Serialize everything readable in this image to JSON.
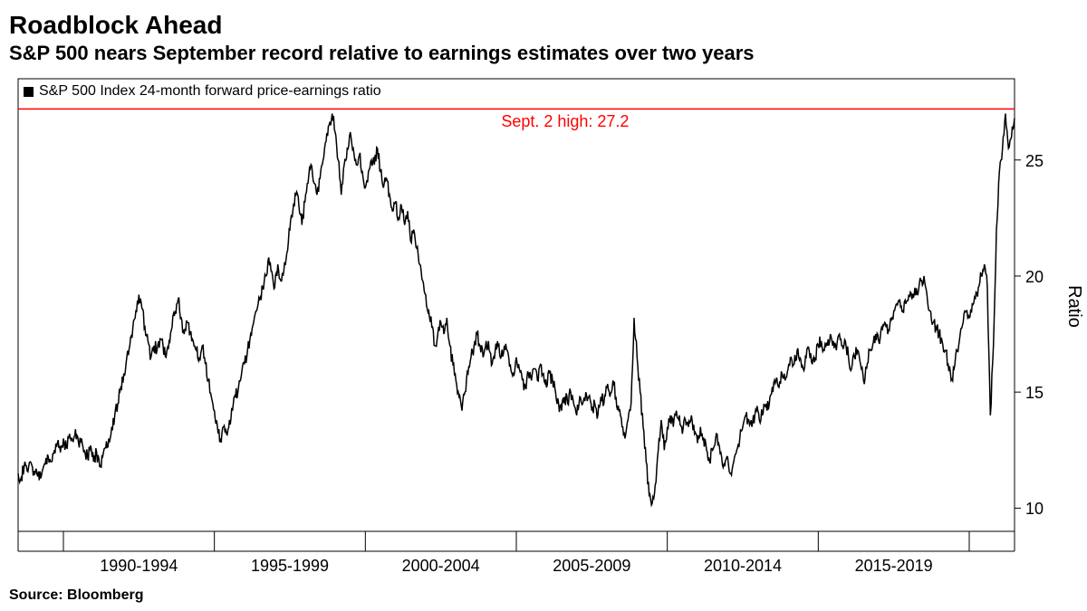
{
  "title": "Roadblock Ahead",
  "subtitle": "S&P 500 nears September record relative to earnings estimates over two years",
  "source": "Source: Bloomberg",
  "legend_label": "S&P 500 Index 24-month forward price-earnings ratio",
  "annotation_label": "Sept. 2 high: 27.2",
  "annotation_value": 27.2,
  "annotation_color": "#ff0000",
  "y_axis_label": "Ratio",
  "chart": {
    "type": "line",
    "background_color": "#ffffff",
    "border_color": "#000000",
    "line_color": "#000000",
    "line_width": 1.5,
    "reference_line_color": "#ff0000",
    "reference_line_width": 1.5,
    "title_fontsize": 28,
    "subtitle_fontsize": 22,
    "legend_fontsize": 16,
    "annotation_fontsize": 18,
    "tick_fontsize": 18,
    "axis_label_fontsize": 20,
    "source_fontsize": 16,
    "x_range": [
      1988,
      2021
    ],
    "y_range": [
      9,
      28.5
    ],
    "y_ticks": [
      10,
      15,
      20,
      25
    ],
    "x_tick_positions": [
      1992,
      1997,
      2002,
      2007,
      2012,
      2017
    ],
    "x_tick_labels": [
      "1990-1994",
      "1995-1999",
      "2000-2004",
      "2005-2009",
      "2010-2014",
      "2015-2019"
    ],
    "x_divider_positions": [
      1992,
      1997,
      2002,
      2007,
      2012,
      2017
    ],
    "series": {
      "values": [
        [
          1988.0,
          11.5
        ],
        [
          1988.1,
          11.3
        ],
        [
          1988.2,
          11.8
        ],
        [
          1988.3,
          11.6
        ],
        [
          1988.4,
          12.0
        ],
        [
          1988.5,
          11.4
        ],
        [
          1988.6,
          11.7
        ],
        [
          1988.7,
          11.2
        ],
        [
          1988.8,
          11.6
        ],
        [
          1988.9,
          11.9
        ],
        [
          1989.0,
          12.2
        ],
        [
          1989.1,
          12.0
        ],
        [
          1989.2,
          12.5
        ],
        [
          1989.3,
          12.8
        ],
        [
          1989.4,
          12.4
        ],
        [
          1989.5,
          13.0
        ],
        [
          1989.6,
          12.6
        ],
        [
          1989.7,
          13.2
        ],
        [
          1989.8,
          12.9
        ],
        [
          1989.9,
          13.4
        ],
        [
          1990.0,
          12.8
        ],
        [
          1990.1,
          13.0
        ],
        [
          1990.2,
          12.5
        ],
        [
          1990.3,
          12.2
        ],
        [
          1990.4,
          12.7
        ],
        [
          1990.5,
          12.0
        ],
        [
          1990.6,
          12.4
        ],
        [
          1990.7,
          11.8
        ],
        [
          1990.8,
          12.2
        ],
        [
          1990.9,
          12.6
        ],
        [
          1991.0,
          13.0
        ],
        [
          1991.1,
          13.5
        ],
        [
          1991.2,
          14.0
        ],
        [
          1991.3,
          14.5
        ],
        [
          1991.4,
          15.2
        ],
        [
          1991.5,
          15.8
        ],
        [
          1991.6,
          16.5
        ],
        [
          1991.7,
          17.0
        ],
        [
          1991.8,
          17.8
        ],
        [
          1991.9,
          18.5
        ],
        [
          1992.0,
          19.2
        ],
        [
          1992.1,
          18.6
        ],
        [
          1992.2,
          17.8
        ],
        [
          1992.3,
          17.2
        ],
        [
          1992.4,
          16.5
        ],
        [
          1992.5,
          17.0
        ],
        [
          1992.6,
          16.8
        ],
        [
          1992.7,
          17.3
        ],
        [
          1992.8,
          17.0
        ],
        [
          1992.9,
          16.5
        ],
        [
          1993.0,
          17.2
        ],
        [
          1993.1,
          17.8
        ],
        [
          1993.2,
          18.5
        ],
        [
          1993.3,
          19.0
        ],
        [
          1993.4,
          18.2
        ],
        [
          1993.5,
          17.5
        ],
        [
          1993.6,
          18.0
        ],
        [
          1993.7,
          17.6
        ],
        [
          1993.8,
          17.2
        ],
        [
          1993.9,
          16.8
        ],
        [
          1994.0,
          16.5
        ],
        [
          1994.1,
          17.0
        ],
        [
          1994.2,
          16.2
        ],
        [
          1994.3,
          15.5
        ],
        [
          1994.4,
          14.8
        ],
        [
          1994.5,
          14.2
        ],
        [
          1994.6,
          13.5
        ],
        [
          1994.7,
          13.0
        ],
        [
          1994.8,
          13.5
        ],
        [
          1994.9,
          13.2
        ],
        [
          1995.0,
          13.8
        ],
        [
          1995.1,
          14.2
        ],
        [
          1995.2,
          14.8
        ],
        [
          1995.3,
          15.2
        ],
        [
          1995.4,
          15.8
        ],
        [
          1995.5,
          16.2
        ],
        [
          1995.6,
          16.8
        ],
        [
          1995.7,
          17.5
        ],
        [
          1995.8,
          18.0
        ],
        [
          1995.9,
          18.5
        ],
        [
          1996.0,
          19.0
        ],
        [
          1996.1,
          19.5
        ],
        [
          1996.2,
          20.0
        ],
        [
          1996.3,
          20.8
        ],
        [
          1996.4,
          20.2
        ],
        [
          1996.5,
          19.5
        ],
        [
          1996.6,
          20.5
        ],
        [
          1996.7,
          19.8
        ],
        [
          1996.8,
          20.2
        ],
        [
          1996.9,
          21.0
        ],
        [
          1997.0,
          22.0
        ],
        [
          1997.1,
          22.8
        ],
        [
          1997.2,
          23.5
        ],
        [
          1997.3,
          23.0
        ],
        [
          1997.4,
          22.2
        ],
        [
          1997.5,
          23.2
        ],
        [
          1997.6,
          24.0
        ],
        [
          1997.7,
          24.8
        ],
        [
          1997.8,
          24.0
        ],
        [
          1997.9,
          23.5
        ],
        [
          1998.0,
          24.2
        ],
        [
          1998.1,
          25.0
        ],
        [
          1998.2,
          25.8
        ],
        [
          1998.3,
          26.5
        ],
        [
          1998.4,
          27.0
        ],
        [
          1998.5,
          26.2
        ],
        [
          1998.6,
          25.0
        ],
        [
          1998.7,
          23.5
        ],
        [
          1998.8,
          24.8
        ],
        [
          1998.9,
          25.5
        ],
        [
          1999.0,
          26.2
        ],
        [
          1999.1,
          25.5
        ],
        [
          1999.2,
          24.8
        ],
        [
          1999.3,
          25.2
        ],
        [
          1999.4,
          24.5
        ],
        [
          1999.5,
          23.8
        ],
        [
          1999.6,
          24.5
        ],
        [
          1999.7,
          25.0
        ],
        [
          1999.8,
          24.8
        ],
        [
          1999.9,
          25.5
        ],
        [
          2000.0,
          24.5
        ],
        [
          2000.1,
          23.8
        ],
        [
          2000.2,
          24.2
        ],
        [
          2000.3,
          23.5
        ],
        [
          2000.4,
          22.8
        ],
        [
          2000.5,
          23.2
        ],
        [
          2000.6,
          22.5
        ],
        [
          2000.7,
          23.0
        ],
        [
          2000.8,
          22.2
        ],
        [
          2000.9,
          22.8
        ],
        [
          2001.0,
          21.5
        ],
        [
          2001.1,
          22.0
        ],
        [
          2001.2,
          21.2
        ],
        [
          2001.3,
          20.5
        ],
        [
          2001.4,
          19.8
        ],
        [
          2001.5,
          19.2
        ],
        [
          2001.6,
          18.5
        ],
        [
          2001.7,
          17.8
        ],
        [
          2001.8,
          17.0
        ],
        [
          2001.9,
          17.5
        ],
        [
          2002.0,
          18.0
        ],
        [
          2002.1,
          17.5
        ],
        [
          2002.2,
          18.2
        ],
        [
          2002.3,
          17.0
        ],
        [
          2002.4,
          16.2
        ],
        [
          2002.5,
          15.5
        ],
        [
          2002.6,
          14.8
        ],
        [
          2002.7,
          14.2
        ],
        [
          2002.8,
          15.0
        ],
        [
          2002.9,
          15.8
        ],
        [
          2003.0,
          16.5
        ],
        [
          2003.1,
          17.0
        ],
        [
          2003.2,
          17.5
        ],
        [
          2003.3,
          17.0
        ],
        [
          2003.4,
          16.5
        ],
        [
          2003.5,
          17.2
        ],
        [
          2003.6,
          16.8
        ],
        [
          2003.7,
          16.2
        ],
        [
          2003.8,
          16.8
        ],
        [
          2003.9,
          17.0
        ],
        [
          2004.0,
          16.5
        ],
        [
          2004.1,
          17.0
        ],
        [
          2004.2,
          16.8
        ],
        [
          2004.3,
          16.2
        ],
        [
          2004.4,
          15.8
        ],
        [
          2004.5,
          16.5
        ],
        [
          2004.6,
          16.0
        ],
        [
          2004.7,
          15.5
        ],
        [
          2004.8,
          15.2
        ],
        [
          2004.9,
          15.8
        ],
        [
          2005.0,
          15.5
        ],
        [
          2005.1,
          16.0
        ],
        [
          2005.2,
          15.5
        ],
        [
          2005.3,
          16.2
        ],
        [
          2005.4,
          15.8
        ],
        [
          2005.5,
          15.2
        ],
        [
          2005.6,
          15.8
        ],
        [
          2005.7,
          15.5
        ],
        [
          2005.8,
          15.0
        ],
        [
          2005.9,
          14.5
        ],
        [
          2006.0,
          14.2
        ],
        [
          2006.1,
          14.8
        ],
        [
          2006.2,
          14.5
        ],
        [
          2006.3,
          15.0
        ],
        [
          2006.4,
          14.5
        ],
        [
          2006.5,
          14.0
        ],
        [
          2006.6,
          14.8
        ],
        [
          2006.7,
          14.5
        ],
        [
          2006.8,
          15.0
        ],
        [
          2006.9,
          14.8
        ],
        [
          2007.0,
          14.2
        ],
        [
          2007.1,
          14.5
        ],
        [
          2007.2,
          14.0
        ],
        [
          2007.3,
          14.8
        ],
        [
          2007.4,
          14.5
        ],
        [
          2007.5,
          15.2
        ],
        [
          2007.6,
          14.8
        ],
        [
          2007.7,
          15.5
        ],
        [
          2007.8,
          14.8
        ],
        [
          2007.9,
          14.2
        ],
        [
          2008.0,
          13.5
        ],
        [
          2008.1,
          13.0
        ],
        [
          2008.2,
          13.8
        ],
        [
          2008.3,
          14.5
        ],
        [
          2008.4,
          18.2
        ],
        [
          2008.5,
          16.5
        ],
        [
          2008.6,
          15.0
        ],
        [
          2008.7,
          13.5
        ],
        [
          2008.8,
          12.0
        ],
        [
          2008.9,
          10.5
        ],
        [
          2009.0,
          10.2
        ],
        [
          2009.1,
          11.0
        ],
        [
          2009.2,
          12.5
        ],
        [
          2009.3,
          13.8
        ],
        [
          2009.4,
          12.5
        ],
        [
          2009.5,
          13.5
        ],
        [
          2009.6,
          14.0
        ],
        [
          2009.7,
          13.5
        ],
        [
          2009.8,
          14.2
        ],
        [
          2009.9,
          14.0
        ],
        [
          2010.0,
          13.2
        ],
        [
          2010.1,
          13.8
        ],
        [
          2010.2,
          13.5
        ],
        [
          2010.3,
          14.0
        ],
        [
          2010.4,
          13.2
        ],
        [
          2010.5,
          12.8
        ],
        [
          2010.6,
          13.5
        ],
        [
          2010.7,
          13.0
        ],
        [
          2010.8,
          12.5
        ],
        [
          2010.9,
          12.0
        ],
        [
          2011.0,
          12.5
        ],
        [
          2011.1,
          13.0
        ],
        [
          2011.2,
          12.8
        ],
        [
          2011.3,
          12.2
        ],
        [
          2011.4,
          11.8
        ],
        [
          2011.5,
          12.2
        ],
        [
          2011.6,
          11.5
        ],
        [
          2011.7,
          12.0
        ],
        [
          2011.8,
          12.5
        ],
        [
          2011.9,
          13.0
        ],
        [
          2012.0,
          13.5
        ],
        [
          2012.1,
          14.0
        ],
        [
          2012.2,
          13.8
        ],
        [
          2012.3,
          13.5
        ],
        [
          2012.4,
          14.0
        ],
        [
          2012.5,
          14.2
        ],
        [
          2012.6,
          13.8
        ],
        [
          2012.7,
          14.5
        ],
        [
          2012.8,
          14.2
        ],
        [
          2012.9,
          14.8
        ],
        [
          2013.0,
          15.0
        ],
        [
          2013.1,
          15.5
        ],
        [
          2013.2,
          15.2
        ],
        [
          2013.3,
          15.8
        ],
        [
          2013.4,
          15.5
        ],
        [
          2013.5,
          16.0
        ],
        [
          2013.6,
          16.5
        ],
        [
          2013.7,
          16.2
        ],
        [
          2013.8,
          16.8
        ],
        [
          2013.9,
          16.5
        ],
        [
          2014.0,
          16.0
        ],
        [
          2014.1,
          16.5
        ],
        [
          2014.2,
          16.8
        ],
        [
          2014.3,
          16.2
        ],
        [
          2014.4,
          16.5
        ],
        [
          2014.5,
          17.0
        ],
        [
          2014.6,
          17.2
        ],
        [
          2014.7,
          16.8
        ],
        [
          2014.8,
          17.0
        ],
        [
          2014.9,
          17.5
        ],
        [
          2015.0,
          17.2
        ],
        [
          2015.1,
          16.8
        ],
        [
          2015.2,
          17.5
        ],
        [
          2015.3,
          17.0
        ],
        [
          2015.4,
          17.2
        ],
        [
          2015.5,
          16.5
        ],
        [
          2015.6,
          16.0
        ],
        [
          2015.7,
          16.5
        ],
        [
          2015.8,
          16.8
        ],
        [
          2015.9,
          16.2
        ],
        [
          2016.0,
          15.5
        ],
        [
          2016.1,
          16.0
        ],
        [
          2016.2,
          16.8
        ],
        [
          2016.3,
          17.0
        ],
        [
          2016.4,
          17.5
        ],
        [
          2016.5,
          17.2
        ],
        [
          2016.6,
          17.8
        ],
        [
          2016.7,
          18.0
        ],
        [
          2016.8,
          17.5
        ],
        [
          2016.9,
          18.2
        ],
        [
          2017.0,
          18.5
        ],
        [
          2017.1,
          18.8
        ],
        [
          2017.2,
          19.0
        ],
        [
          2017.3,
          18.5
        ],
        [
          2017.4,
          18.8
        ],
        [
          2017.5,
          19.2
        ],
        [
          2017.6,
          19.0
        ],
        [
          2017.7,
          19.5
        ],
        [
          2017.8,
          19.2
        ],
        [
          2017.9,
          19.8
        ],
        [
          2018.0,
          20.0
        ],
        [
          2018.1,
          19.2
        ],
        [
          2018.2,
          18.5
        ],
        [
          2018.3,
          18.0
        ],
        [
          2018.4,
          17.8
        ],
        [
          2018.5,
          17.5
        ],
        [
          2018.6,
          17.2
        ],
        [
          2018.7,
          16.8
        ],
        [
          2018.8,
          16.2
        ],
        [
          2018.9,
          15.5
        ],
        [
          2019.0,
          16.0
        ],
        [
          2019.1,
          16.8
        ],
        [
          2019.2,
          17.5
        ],
        [
          2019.3,
          18.0
        ],
        [
          2019.4,
          18.5
        ],
        [
          2019.5,
          18.2
        ],
        [
          2019.6,
          18.8
        ],
        [
          2019.7,
          19.0
        ],
        [
          2019.8,
          19.5
        ],
        [
          2019.9,
          20.0
        ],
        [
          2020.0,
          20.5
        ],
        [
          2020.1,
          19.5
        ],
        [
          2020.2,
          14.0
        ],
        [
          2020.3,
          17.0
        ],
        [
          2020.4,
          22.0
        ],
        [
          2020.5,
          24.5
        ],
        [
          2020.6,
          25.5
        ],
        [
          2020.7,
          27.0
        ],
        [
          2020.8,
          25.5
        ],
        [
          2020.9,
          26.0
        ],
        [
          2021.0,
          26.8
        ]
      ]
    }
  }
}
